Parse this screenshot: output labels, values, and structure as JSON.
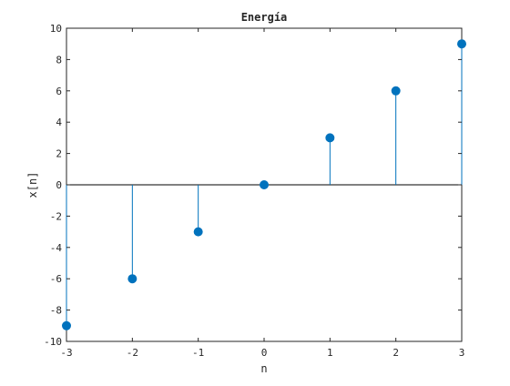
{
  "chart_data": {
    "type": "stem",
    "title": "Energía",
    "xlabel": "n",
    "ylabel": "x[n]",
    "xlim": [
      -3,
      3
    ],
    "ylim": [
      -10,
      10
    ],
    "xticks": [
      -3,
      -2,
      -1,
      0,
      1,
      2,
      3
    ],
    "xtick_labels": [
      "-3",
      "-2",
      "-1",
      "0",
      "1",
      "2",
      "3"
    ],
    "yticks": [
      -10,
      -8,
      -6,
      -4,
      -2,
      0,
      2,
      4,
      6,
      8,
      10
    ],
    "ytick_labels": [
      "-10",
      "-8",
      "-6",
      "-4",
      "-2",
      "0",
      "2",
      "4",
      "6",
      "8",
      "10"
    ],
    "grid": false,
    "baseline": 0,
    "x": [
      -3,
      -2,
      -1,
      0,
      1,
      2,
      3
    ],
    "y": [
      -9,
      -6,
      -3,
      0,
      3,
      6,
      9
    ],
    "colors": {
      "stem": "#0072BD",
      "axes": "#262626",
      "baseline": "#000000"
    }
  }
}
